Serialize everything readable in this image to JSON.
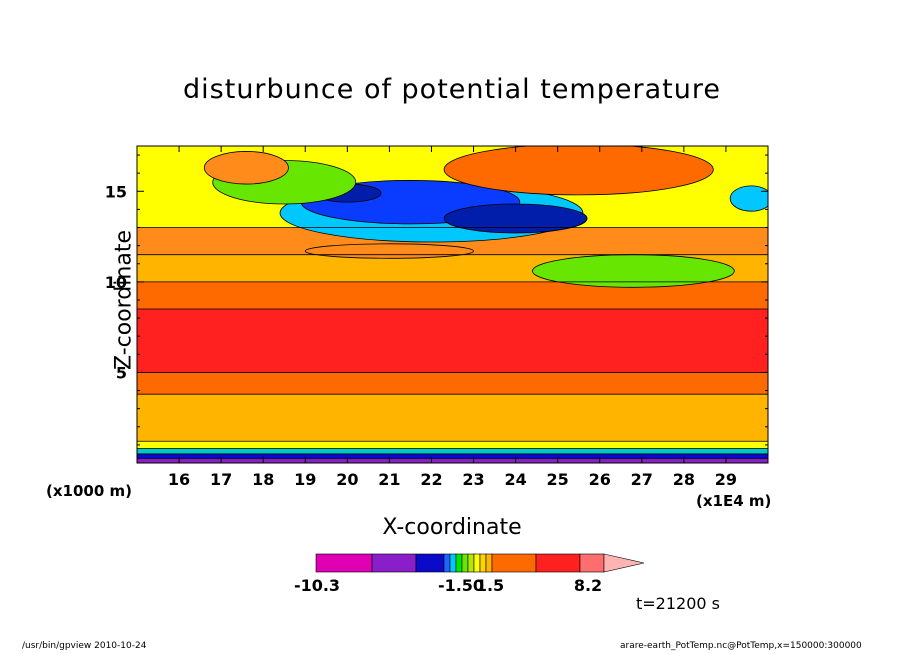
{
  "chart_data": {
    "type": "contour",
    "title": "disturbunce of potential temperature",
    "xlabel": "X-coordinate",
    "ylabel": "Z-coordinate",
    "x_unit": "(x1E4 m)",
    "y_unit": "(x1000 m)",
    "xlim": [
      15,
      30
    ],
    "ylim": [
      0,
      17.5
    ],
    "xticks": [
      16,
      17,
      18,
      19,
      20,
      21,
      22,
      23,
      24,
      25,
      26,
      27,
      28,
      29
    ],
    "yticks": [
      5,
      10,
      15
    ],
    "fill_bands": [
      {
        "z0": 0.0,
        "z1": 0.25,
        "color": "#8a1ec8"
      },
      {
        "z0": 0.25,
        "z1": 0.5,
        "color": "#0a0ac8"
      },
      {
        "z0": 0.5,
        "z1": 0.8,
        "color": "#00c8c8"
      },
      {
        "z0": 0.8,
        "z1": 1.2,
        "color": "#ffff00"
      },
      {
        "z0": 1.2,
        "z1": 3.8,
        "color": "#ffb400"
      },
      {
        "z0": 3.8,
        "z1": 5.0,
        "color": "#ff6a00"
      },
      {
        "z0": 5.0,
        "z1": 8.5,
        "color": "#ff2020"
      },
      {
        "z0": 8.5,
        "z1": 10.0,
        "color": "#ff6a00"
      },
      {
        "z0": 10.0,
        "z1": 11.5,
        "color": "#ffb400"
      },
      {
        "z0": 11.5,
        "z1": 13.0,
        "color": "#ff8c1a"
      },
      {
        "z0": 13.0,
        "z1": 17.5,
        "color": "#ffff00"
      }
    ],
    "fill_blobs": [
      {
        "x": 22.0,
        "z": 13.8,
        "rx": 3.6,
        "rz": 1.6,
        "color": "#00c8ff"
      },
      {
        "x": 21.5,
        "z": 14.4,
        "rx": 2.6,
        "rz": 1.2,
        "color": "#0a3cff"
      },
      {
        "x": 20.0,
        "z": 14.9,
        "rx": 0.8,
        "rz": 0.5,
        "color": "#001eaa"
      },
      {
        "x": 24.0,
        "z": 13.5,
        "rx": 1.7,
        "rz": 0.8,
        "color": "#001eaa"
      },
      {
        "x": 18.5,
        "z": 15.5,
        "rx": 1.7,
        "rz": 1.2,
        "color": "#66e600"
      },
      {
        "x": 17.6,
        "z": 16.3,
        "rx": 1.0,
        "rz": 0.9,
        "color": "#ff8c1a"
      },
      {
        "x": 25.5,
        "z": 16.2,
        "rx": 3.2,
        "rz": 1.4,
        "color": "#ff6a00"
      },
      {
        "x": 26.8,
        "z": 10.6,
        "rx": 2.4,
        "rz": 0.9,
        "color": "#66e600"
      },
      {
        "x": 29.6,
        "z": 14.6,
        "rx": 0.5,
        "rz": 0.7,
        "color": "#00c8ff"
      },
      {
        "x": 21.0,
        "z": 11.7,
        "rx": 2.0,
        "rz": 0.4,
        "color": "#ff8c1a"
      }
    ],
    "colorbar": {
      "segments": [
        "#e000b4",
        "#8a1ec8",
        "#0a0ac8",
        "#1e64ff",
        "#00c8ff",
        "#00e600",
        "#66e600",
        "#b4e600",
        "#ffff00",
        "#ffd200",
        "#ffb400",
        "#ff6a00",
        "#ff2020",
        "#ff6e6e",
        "#ffb4b4"
      ],
      "labels": [
        "-10.3",
        "-1.50",
        "1.5",
        "8.2"
      ]
    },
    "time_label": "t=21200 s"
  },
  "footer": {
    "program": "/usr/bin/gpview   2010-10-24",
    "source": "arare-earth_PotTemp.nc@PotTemp,x=150000:300000"
  }
}
